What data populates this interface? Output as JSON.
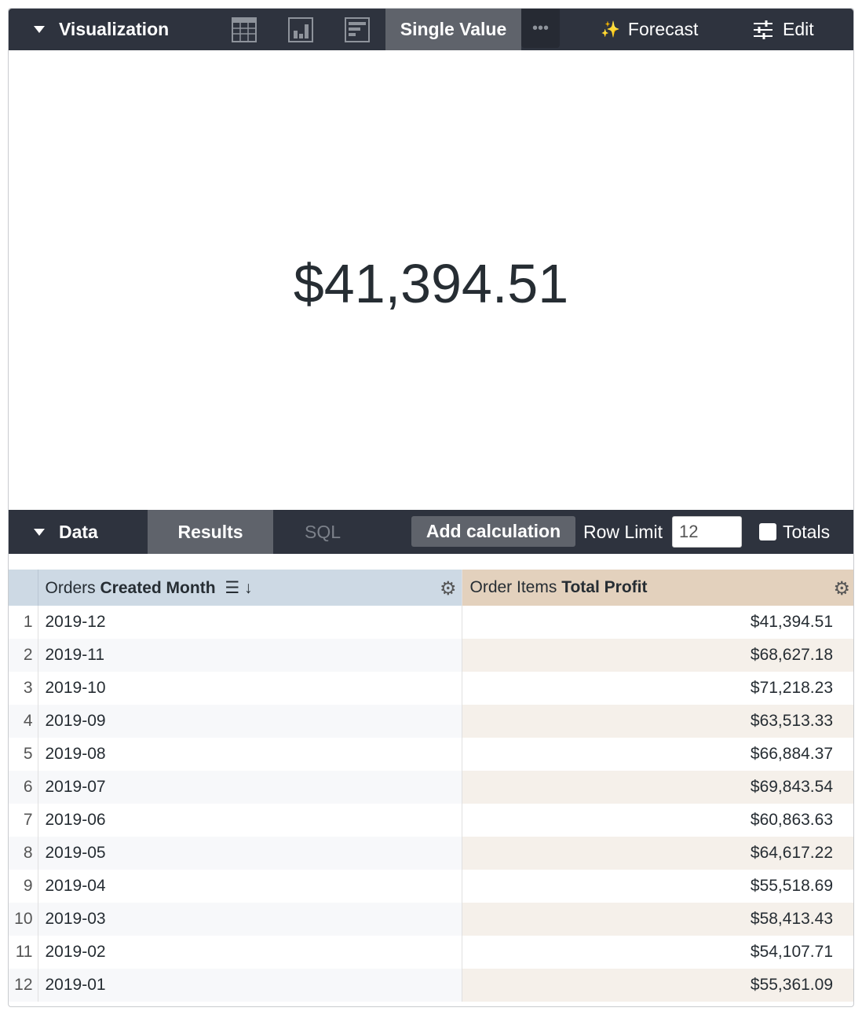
{
  "viz_bar": {
    "title": "Visualization",
    "tabs": [
      "table-icon",
      "column-chart-icon",
      "bar-chart-icon"
    ],
    "active": "Single Value",
    "more": "•••",
    "forecast": "Forecast",
    "edit": "Edit"
  },
  "single_value": "$41,394.51",
  "data_bar": {
    "title": "Data",
    "results": "Results",
    "sql": "SQL",
    "add_calc": "Add calculation",
    "row_limit_label": "Row Limit",
    "row_limit": "12",
    "totals": "Totals",
    "totals_checked": false
  },
  "table": {
    "col1": {
      "prefix": "Orders ",
      "bold": "Created Month"
    },
    "col2": {
      "prefix": "Order Items ",
      "bold": "Total Profit"
    },
    "rows": [
      {
        "n": "1",
        "month": "2019-12",
        "profit": "$41,394.51"
      },
      {
        "n": "2",
        "month": "2019-11",
        "profit": "$68,627.18"
      },
      {
        "n": "3",
        "month": "2019-10",
        "profit": "$71,218.23"
      },
      {
        "n": "4",
        "month": "2019-09",
        "profit": "$63,513.33"
      },
      {
        "n": "5",
        "month": "2019-08",
        "profit": "$66,884.37"
      },
      {
        "n": "6",
        "month": "2019-07",
        "profit": "$69,843.54"
      },
      {
        "n": "7",
        "month": "2019-06",
        "profit": "$60,863.63"
      },
      {
        "n": "8",
        "month": "2019-05",
        "profit": "$64,617.22"
      },
      {
        "n": "9",
        "month": "2019-04",
        "profit": "$55,518.69"
      },
      {
        "n": "10",
        "month": "2019-03",
        "profit": "$58,413.43"
      },
      {
        "n": "11",
        "month": "2019-02",
        "profit": "$54,107.71"
      },
      {
        "n": "12",
        "month": "2019-01",
        "profit": "$55,361.09"
      }
    ]
  },
  "colors": {
    "toolbar": "#2e333e",
    "active_tab": "#5f636b",
    "dim_header": "#cdd9e4",
    "measure_header": "#e3d1bd"
  }
}
